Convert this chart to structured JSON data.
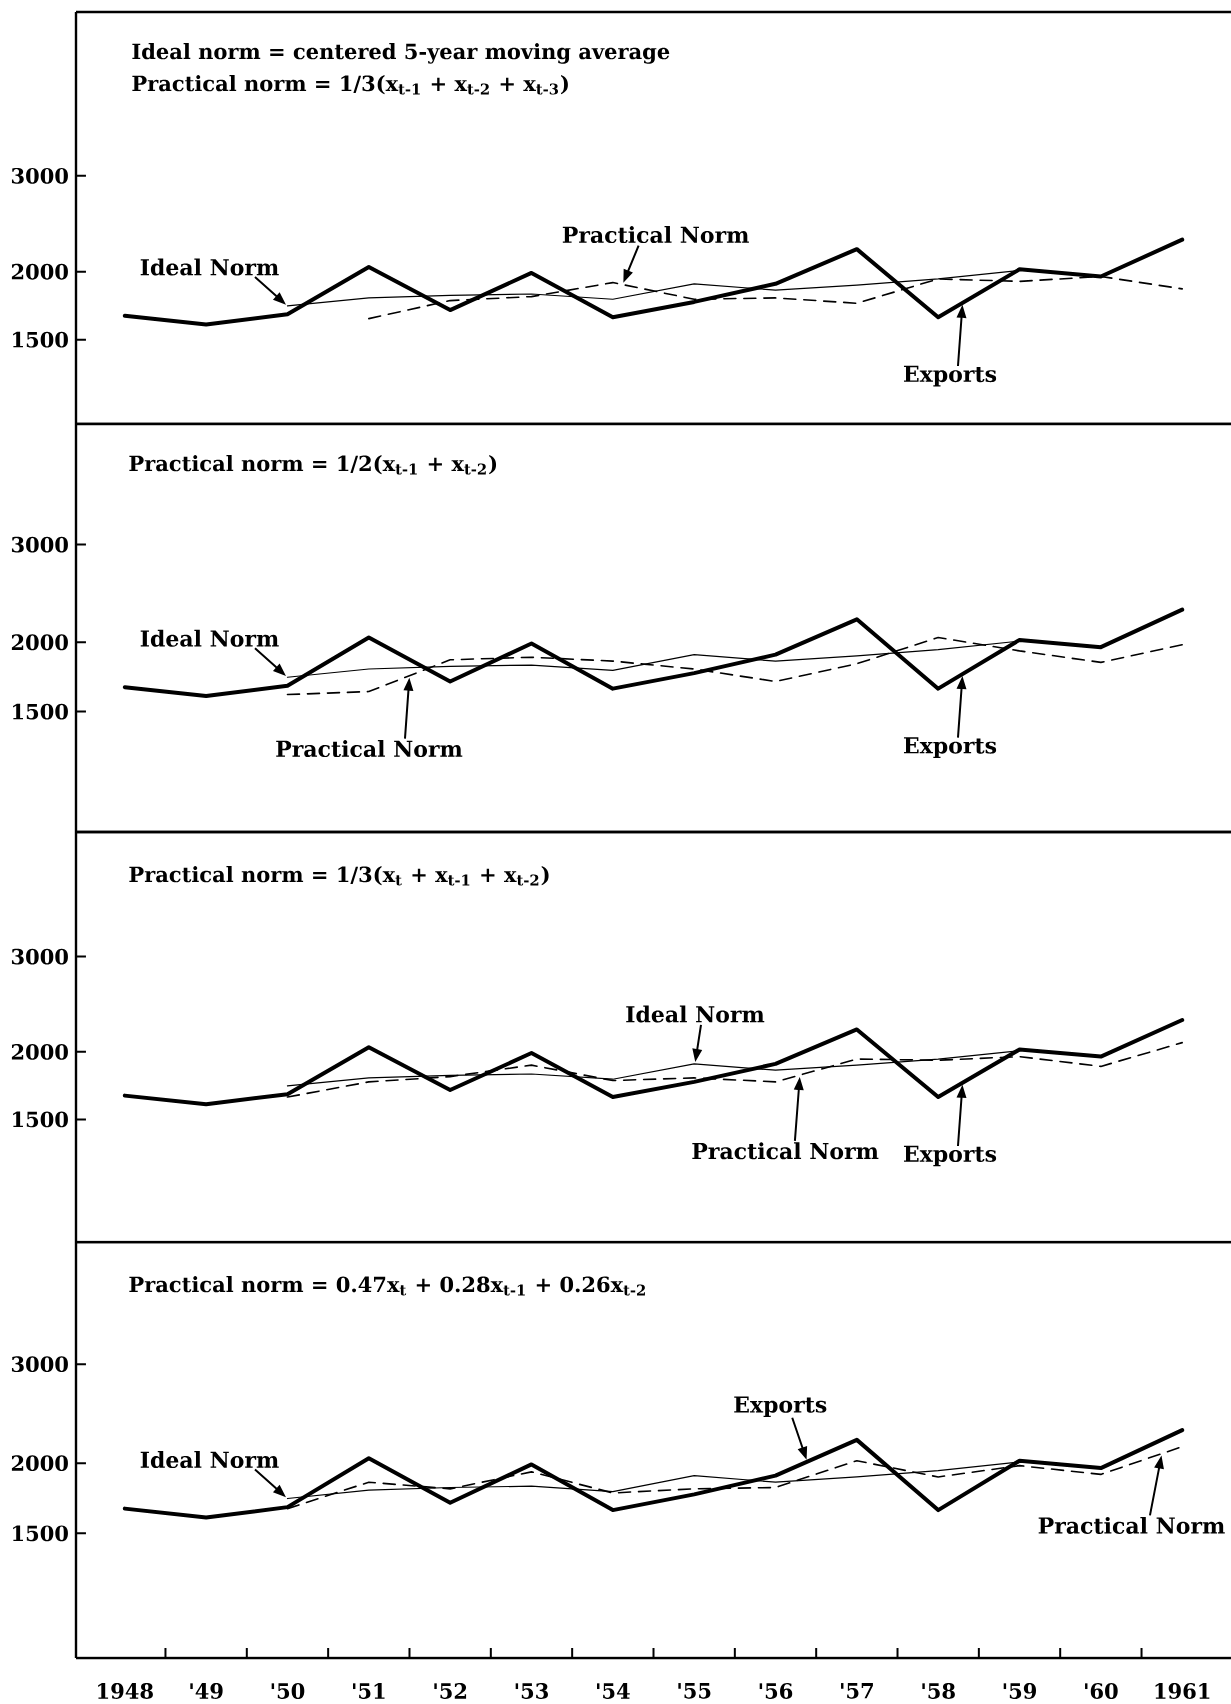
{
  "chart_data": [
    {
      "type": "line",
      "annotations": [
        "Ideal norm = centered 5-year moving average",
        "Practical norm = 1/3(x$_{t-1}$ + x$_{t-2}$ + x$_{t-3}$)"
      ],
      "xlim": [
        1947.4,
        1961.6
      ],
      "ylim": [
        1050,
        6000
      ],
      "yticks": [
        1500,
        2000,
        3000
      ],
      "log": "y",
      "tick_labels": "y",
      "series": [
        {
          "name": "Exports",
          "color": "#000000",
          "line_style": "solid",
          "x": [
            1948,
            1949,
            1950,
            1951,
            1952,
            1953,
            1954,
            1955,
            1956,
            1957,
            1958,
            1959,
            1960,
            1961
          ],
          "values": [
            1660,
            1600,
            1670,
            2040,
            1700,
            1990,
            1650,
            1760,
            1900,
            2200,
            1650,
            2020,
            1960,
            2290
          ]
        },
        {
          "name": "Ideal Norm",
          "color": "#000000",
          "line_style": "solid",
          "x": [
            1950,
            1951,
            1952,
            1953,
            1954,
            1955,
            1956,
            1957,
            1958,
            1959
          ],
          "values": [
            1730,
            1790,
            1810,
            1820,
            1780,
            1900,
            1850,
            1890,
            1940,
            2010
          ]
        },
        {
          "name": "Practical Norm",
          "color": "#000000",
          "line_style": "dashed",
          "x": [
            1951,
            1952,
            1953,
            1954,
            1955,
            1956,
            1957,
            1958,
            1959,
            1960,
            1961
          ],
          "values": [
            1640,
            1770,
            1800,
            1910,
            1780,
            1790,
            1750,
            1940,
            1920,
            1960,
            1860
          ]
        }
      ]
    },
    {
      "type": "line",
      "annotations": [
        "Practical norm = 1/2(x$_{t-1}$ + x$_{t-2}$)"
      ],
      "xlim": [
        1947.4,
        1961.6
      ],
      "ylim": [
        910,
        4950
      ],
      "yticks": [
        1500,
        2000,
        3000
      ],
      "log": "y",
      "tick_labels": "y",
      "series": [
        {
          "name": "Exports",
          "color": "#000000",
          "line_style": "solid",
          "x": [
            1948,
            1949,
            1950,
            1951,
            1952,
            1953,
            1954,
            1955,
            1956,
            1957,
            1958,
            1959,
            1960,
            1961
          ],
          "values": [
            1660,
            1600,
            1670,
            2040,
            1700,
            1990,
            1650,
            1760,
            1900,
            2200,
            1650,
            2020,
            1960,
            2290
          ]
        },
        {
          "name": "Ideal Norm",
          "color": "#000000",
          "line_style": "solid",
          "x": [
            1950,
            1951,
            1952,
            1953,
            1954,
            1955,
            1956,
            1957,
            1958,
            1959
          ],
          "values": [
            1730,
            1790,
            1810,
            1820,
            1780,
            1900,
            1850,
            1890,
            1940,
            2010
          ]
        },
        {
          "name": "Practical Norm",
          "color": "#000000",
          "line_style": "dashed",
          "x": [
            1950,
            1951,
            1952,
            1953,
            1954,
            1955,
            1956,
            1957,
            1958,
            1959,
            1960,
            1961
          ],
          "values": [
            1610,
            1630,
            1860,
            1880,
            1850,
            1790,
            1700,
            1830,
            2040,
            1930,
            1840,
            1980
          ]
        }
      ]
    },
    {
      "type": "line",
      "annotations": [
        "Practical norm = 1/3(x$_{t}$ + x$_{t-1}$ + x$_{t-2}$)"
      ],
      "xlim": [
        1947.4,
        1961.6
      ],
      "ylim": [
        890,
        5100
      ],
      "yticks": [
        1500,
        2000,
        3000
      ],
      "log": "y",
      "tick_labels": "y",
      "series": [
        {
          "name": "Exports",
          "color": "#000000",
          "line_style": "solid",
          "x": [
            1948,
            1949,
            1950,
            1951,
            1952,
            1953,
            1954,
            1955,
            1956,
            1957,
            1958,
            1959,
            1960,
            1961
          ],
          "values": [
            1660,
            1600,
            1670,
            2040,
            1700,
            1990,
            1650,
            1760,
            1900,
            2200,
            1650,
            2020,
            1960,
            2290
          ]
        },
        {
          "name": "Ideal Norm",
          "color": "#000000",
          "line_style": "solid",
          "x": [
            1950,
            1951,
            1952,
            1953,
            1954,
            1955,
            1956,
            1957,
            1958,
            1959
          ],
          "values": [
            1730,
            1790,
            1810,
            1820,
            1780,
            1900,
            1850,
            1890,
            1940,
            2010
          ]
        },
        {
          "name": "Practical Norm",
          "color": "#000000",
          "line_style": "dashed",
          "x": [
            1950,
            1951,
            1952,
            1953,
            1954,
            1955,
            1956,
            1957,
            1958,
            1959,
            1960,
            1961
          ],
          "values": [
            1650,
            1760,
            1800,
            1890,
            1770,
            1790,
            1760,
            1940,
            1930,
            1960,
            1880,
            2080
          ]
        }
      ]
    },
    {
      "type": "line",
      "annotations": [
        "Practical norm = 0.47x$_{t}$ + 0.28x$_{t-1}$ + 0.26x$_{t-2}$"
      ],
      "xlim": [
        1947.4,
        1961.6
      ],
      "ylim": [
        900,
        4950
      ],
      "yticks": [
        1500,
        2000,
        3000
      ],
      "log": "y",
      "xticks": [
        1948,
        {
          "value": 1949,
          "label": "'49"
        },
        {
          "value": 1950,
          "label": "'50"
        },
        {
          "value": 1951,
          "label": "'51"
        },
        {
          "value": 1952,
          "label": "'52"
        },
        {
          "value": 1953,
          "label": "'53"
        },
        {
          "value": 1954,
          "label": "'54"
        },
        {
          "value": 1955,
          "label": "'55"
        },
        {
          "value": 1956,
          "label": "'56"
        },
        {
          "value": 1957,
          "label": "'57"
        },
        {
          "value": 1958,
          "label": "'58"
        },
        {
          "value": 1959,
          "label": "'59"
        },
        {
          "value": 1960,
          "label": "'60"
        },
        1961,
        {
          "value": 1948.5,
          "label": null
        },
        {
          "value": 1949.5,
          "label": null
        },
        {
          "value": 1950.5,
          "label": null
        },
        {
          "value": 1951.5,
          "label": null
        },
        {
          "value": 1952.5,
          "label": null
        },
        {
          "value": 1953.5,
          "label": null
        },
        {
          "value": 1954.5,
          "label": null
        },
        {
          "value": 1955.5,
          "label": null
        },
        {
          "value": 1956.5,
          "label": null
        },
        {
          "value": 1957.5,
          "label": null
        },
        {
          "value": 1958.5,
          "label": null
        },
        {
          "value": 1959.5,
          "label": null
        },
        {
          "value": 1960.5,
          "label": null
        }
      ],
      "series": [
        {
          "name": "Exports",
          "color": "#000000",
          "line_style": "solid",
          "x": [
            1948,
            1949,
            1950,
            1951,
            1952,
            1953,
            1954,
            1955,
            1956,
            1957,
            1958,
            1959,
            1960,
            1961
          ],
          "values": [
            1660,
            1600,
            1670,
            2040,
            1700,
            1990,
            1650,
            1760,
            1900,
            2200,
            1650,
            2020,
            1960,
            2290
          ]
        },
        {
          "name": "Ideal Norm",
          "color": "#000000",
          "line_style": "solid",
          "x": [
            1950,
            1951,
            1952,
            1953,
            1954,
            1955,
            1956,
            1957,
            1958,
            1959
          ],
          "values": [
            1730,
            1790,
            1810,
            1820,
            1780,
            1900,
            1850,
            1890,
            1940,
            2010
          ]
        },
        {
          "name": "Practical Norm",
          "color": "#000000",
          "line_style": "dashed",
          "x": [
            1950,
            1951,
            1952,
            1953,
            1954,
            1955,
            1956,
            1957,
            1958,
            1959,
            1960,
            1961
          ],
          "values": [
            1660,
            1850,
            1800,
            1930,
            1770,
            1800,
            1810,
            2020,
            1890,
            1980,
            1910,
            2140
          ]
        }
      ]
    }
  ]
}
